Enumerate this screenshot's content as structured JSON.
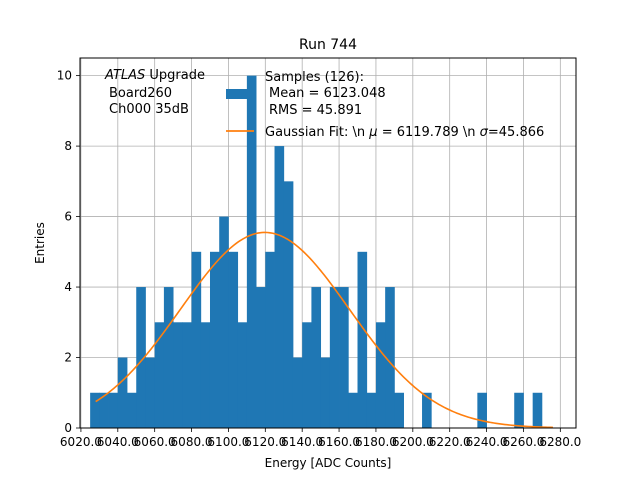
{
  "chart_data": {
    "type": "bar",
    "title": "Run 744",
    "xlabel": "Energy [ADC Counts]",
    "ylabel": "Entries",
    "xlim": [
      6019.5,
      6288.5
    ],
    "ylim": [
      0,
      10.5
    ],
    "grid": true,
    "xticks": [
      6020,
      6040,
      6060,
      6080,
      6100,
      6120,
      6140,
      6160,
      6180,
      6200,
      6220,
      6240,
      6260,
      6280
    ],
    "xtick_labels": [
      "6020.0",
      "6040.0",
      "6060.0",
      "6080.0",
      "6100.0",
      "6120.0",
      "6140.0",
      "6160.0",
      "6180.0",
      "6200.0",
      "6220.0",
      "6240.0",
      "6260.0",
      "6280.0"
    ],
    "yticks": [
      0,
      2,
      4,
      6,
      8,
      10
    ],
    "ytick_labels": [
      "0",
      "2",
      "4",
      "6",
      "8",
      "10"
    ],
    "bin_start": 6025,
    "bin_width": 5,
    "values": [
      1,
      1,
      1,
      2,
      1,
      4,
      2,
      3,
      4,
      3,
      3,
      5,
      3,
      5,
      6,
      5,
      3,
      10,
      4,
      5,
      8,
      7,
      2,
      3,
      4,
      2,
      4,
      4,
      1,
      5,
      1,
      3,
      4,
      1,
      0,
      0,
      1,
      0,
      0,
      0,
      0,
      0,
      1,
      0,
      0,
      0,
      1,
      0,
      1
    ],
    "bar_color": "#1f77b4",
    "fit": {
      "name": "Gaussian Fit",
      "mu": 6119.789,
      "sigma": 45.866,
      "amplitude": 5.55,
      "x_range": [
        6028,
        6276
      ],
      "color": "#ff7f0e"
    },
    "legend": {
      "position": "top-right",
      "hist_lines": [
        "Samples (126):",
        "Mean = 6123.048",
        "RMS = 45.891"
      ],
      "fit_prefix": "Gaussian Fit: \\n ",
      "fit_mu_symbol": "μ",
      "fit_mu_value": " = 6119.789 \\n ",
      "fit_sigma_symbol": "σ",
      "fit_sigma_value": "=45.866"
    },
    "annotation": {
      "italic": "ATLAS",
      "line1_rest": " Upgrade",
      "line2": "Board260",
      "line3": "Ch000 35dB"
    }
  }
}
